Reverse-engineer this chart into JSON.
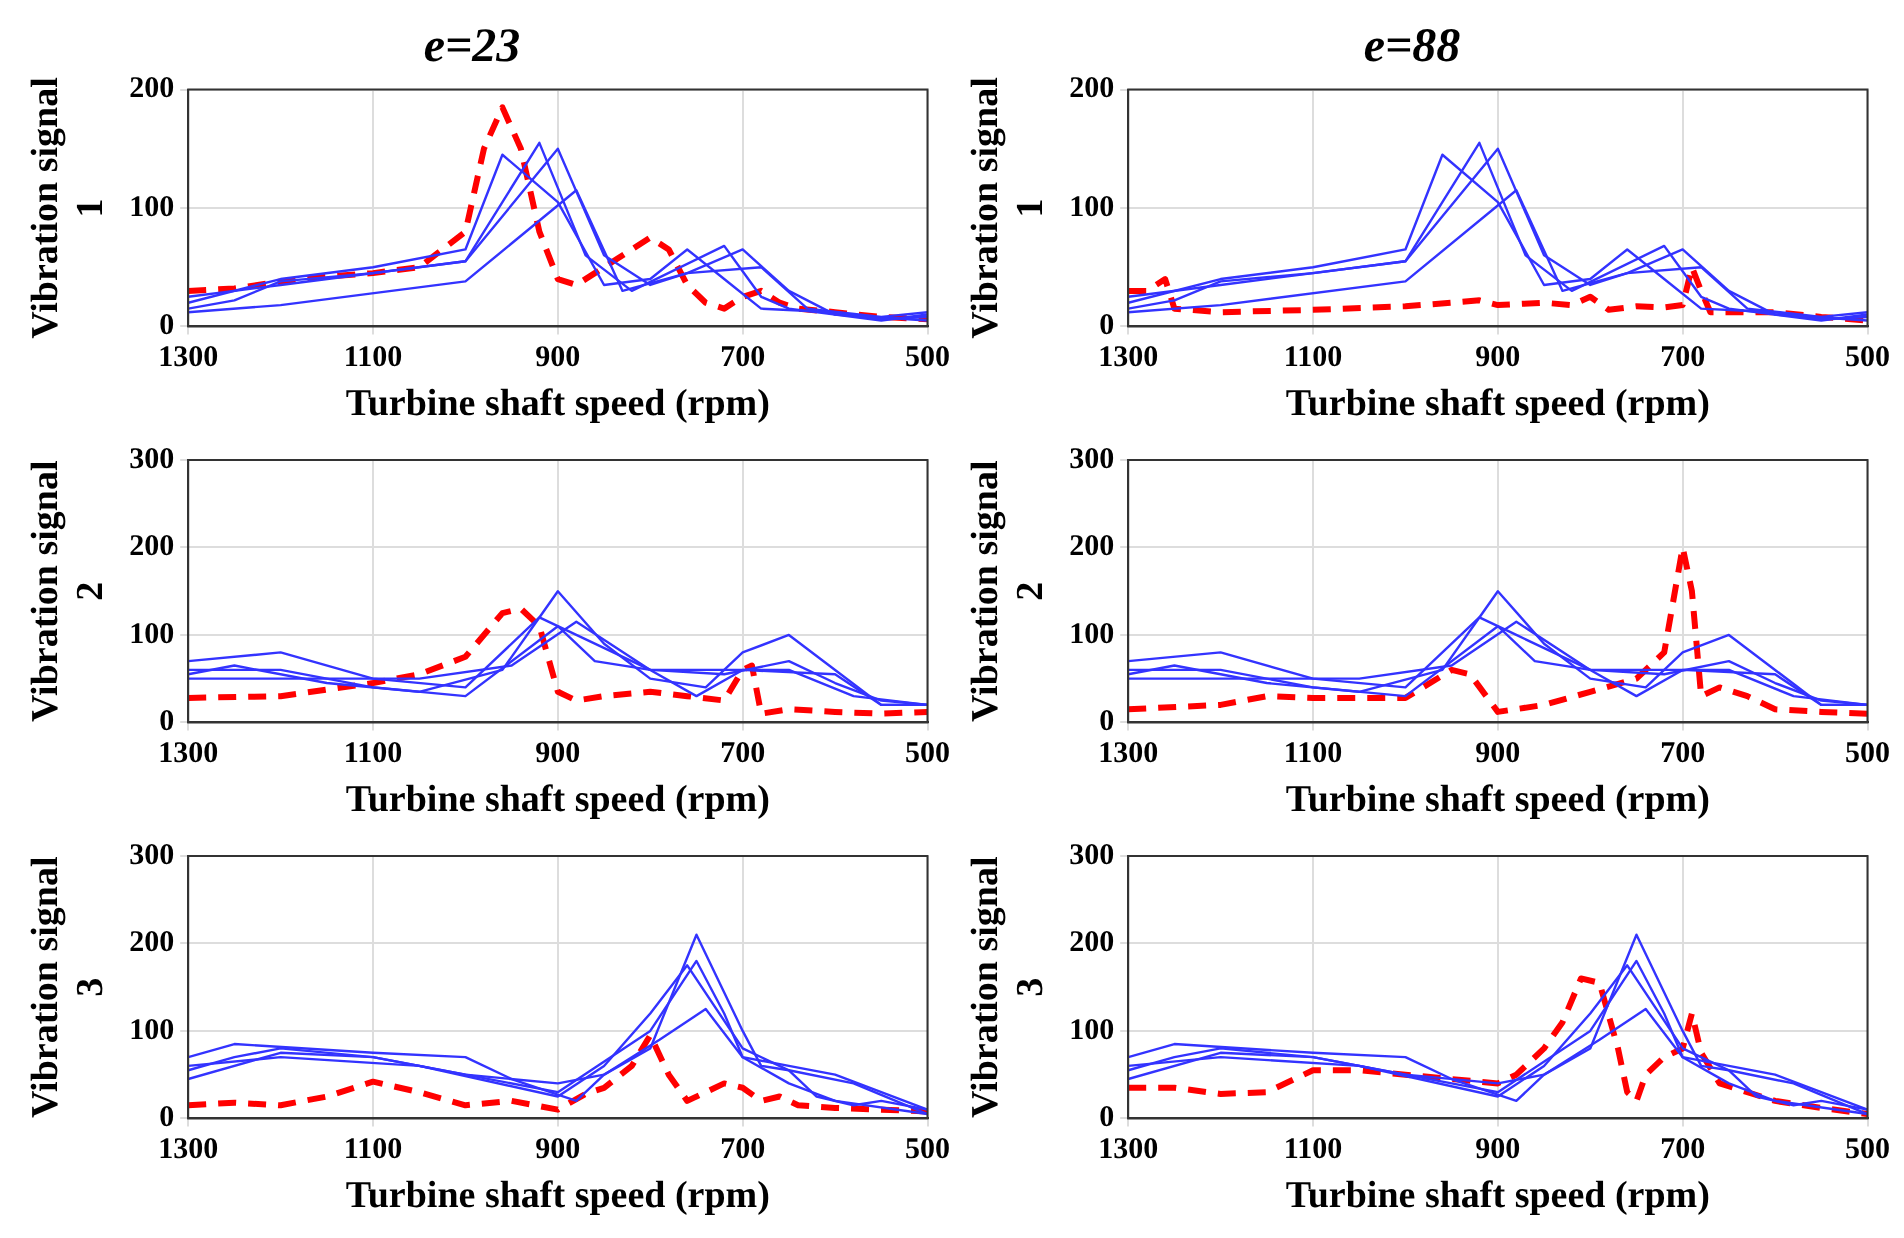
{
  "chart_data": [
    {
      "type": "line",
      "title": "e=23",
      "xlabel": "Turbine shaft speed (rpm)",
      "ylabel": "Vibration signal 1",
      "xlim": [
        1300,
        500
      ],
      "xticks": [
        1300,
        1100,
        900,
        700,
        500
      ],
      "ylim": [
        0,
        200
      ],
      "yticks": [
        0,
        100,
        200
      ],
      "grid": true,
      "legend": false,
      "series": [
        {
          "color": "#3333ff",
          "line_style": "solid",
          "x": [
            1300,
            1200,
            1100,
            1000,
            960,
            900,
            850,
            800,
            760,
            720,
            680,
            600,
            550,
            500
          ],
          "values": [
            20,
            40,
            50,
            65,
            145,
            105,
            35,
            40,
            65,
            40,
            15,
            12,
            6,
            8
          ]
        },
        {
          "color": "#3333ff",
          "line_style": "solid",
          "x": [
            1300,
            1250,
            1200,
            1100,
            1000,
            920,
            870,
            820,
            720,
            680,
            650,
            550,
            500
          ],
          "values": [
            15,
            22,
            38,
            45,
            55,
            155,
            60,
            30,
            68,
            25,
            15,
            5,
            10
          ]
        },
        {
          "color": "#3333ff",
          "line_style": "solid",
          "x": [
            1300,
            1200,
            1000,
            900,
            850,
            800,
            760,
            700,
            650,
            600,
            500
          ],
          "values": [
            25,
            35,
            55,
            150,
            60,
            35,
            45,
            65,
            30,
            10,
            5
          ]
        },
        {
          "color": "#3333ff",
          "line_style": "solid",
          "x": [
            1300,
            1200,
            1000,
            880,
            830,
            760,
            680,
            630,
            550,
            500
          ],
          "values": [
            12,
            18,
            38,
            115,
            30,
            45,
            50,
            15,
            8,
            12
          ]
        },
        {
          "color": "#ff0000",
          "line_style": "dashed",
          "x": [
            1300,
            1250,
            1200,
            1150,
            1100,
            1050,
            1000,
            980,
            960,
            940,
            920,
            900,
            880,
            860,
            840,
            820,
            800,
            780,
            760,
            740,
            720,
            700,
            680,
            660,
            640,
            600,
            550,
            500
          ],
          "values": [
            30,
            32,
            38,
            42,
            45,
            50,
            80,
            150,
            185,
            150,
            80,
            40,
            35,
            45,
            55,
            65,
            75,
            65,
            35,
            20,
            15,
            25,
            30,
            20,
            15,
            12,
            8,
            6
          ]
        }
      ]
    },
    {
      "type": "line",
      "title": "e=88",
      "xlabel": "Turbine shaft speed (rpm)",
      "ylabel": "Vibration signal 1",
      "xlim": [
        1300,
        500
      ],
      "xticks": [
        1300,
        1100,
        900,
        700,
        500
      ],
      "ylim": [
        0,
        200
      ],
      "yticks": [
        0,
        100,
        200
      ],
      "grid": true,
      "legend": false,
      "series": [
        {
          "color": "#3333ff",
          "line_style": "solid",
          "x": [
            1300,
            1200,
            1100,
            1000,
            960,
            900,
            850,
            800,
            760,
            720,
            680,
            600,
            550,
            500
          ],
          "values": [
            20,
            40,
            50,
            65,
            145,
            105,
            35,
            40,
            65,
            40,
            15,
            12,
            6,
            8
          ]
        },
        {
          "color": "#3333ff",
          "line_style": "solid",
          "x": [
            1300,
            1250,
            1200,
            1100,
            1000,
            920,
            870,
            820,
            720,
            680,
            650,
            550,
            500
          ],
          "values": [
            15,
            22,
            38,
            45,
            55,
            155,
            60,
            30,
            68,
            25,
            15,
            5,
            10
          ]
        },
        {
          "color": "#3333ff",
          "line_style": "solid",
          "x": [
            1300,
            1200,
            1000,
            900,
            850,
            800,
            760,
            700,
            650,
            600,
            500
          ],
          "values": [
            25,
            35,
            55,
            150,
            60,
            35,
            45,
            65,
            30,
            10,
            5
          ]
        },
        {
          "color": "#3333ff",
          "line_style": "solid",
          "x": [
            1300,
            1200,
            1000,
            880,
            830,
            760,
            680,
            630,
            550,
            500
          ],
          "values": [
            12,
            18,
            38,
            115,
            30,
            45,
            50,
            15,
            8,
            12
          ]
        },
        {
          "color": "#ff0000",
          "line_style": "dashed",
          "x": [
            1300,
            1280,
            1260,
            1250,
            1200,
            1100,
            1000,
            950,
            920,
            900,
            850,
            820,
            800,
            780,
            750,
            720,
            700,
            690,
            680,
            670,
            600,
            550,
            500
          ],
          "values": [
            30,
            30,
            40,
            15,
            12,
            14,
            17,
            20,
            22,
            18,
            20,
            18,
            25,
            14,
            17,
            16,
            18,
            50,
            30,
            12,
            12,
            8,
            5
          ]
        }
      ]
    },
    {
      "type": "line",
      "xlabel": "Turbine shaft speed (rpm)",
      "ylabel": "Vibration signal 2",
      "xlim": [
        1300,
        500
      ],
      "xticks": [
        1300,
        1100,
        900,
        700,
        500
      ],
      "ylim": [
        0,
        300
      ],
      "yticks": [
        0,
        100,
        200,
        300
      ],
      "grid": true,
      "legend": false,
      "series": [
        {
          "color": "#3333ff",
          "line_style": "solid",
          "x": [
            1300,
            1200,
            1100,
            1000,
            920,
            900,
            850,
            800,
            740,
            700,
            650,
            600,
            550,
            500
          ],
          "values": [
            70,
            80,
            50,
            40,
            120,
            150,
            90,
            50,
            40,
            80,
            100,
            60,
            20,
            20
          ]
        },
        {
          "color": "#3333ff",
          "line_style": "solid",
          "x": [
            1300,
            1250,
            1150,
            1050,
            960,
            920,
            880,
            800,
            750,
            700,
            600,
            550,
            500
          ],
          "values": [
            55,
            65,
            45,
            35,
            60,
            120,
            100,
            60,
            30,
            60,
            55,
            20,
            20
          ]
        },
        {
          "color": "#3333ff",
          "line_style": "solid",
          "x": [
            1300,
            1200,
            1100,
            1000,
            900,
            860,
            800,
            700,
            650,
            580,
            500
          ],
          "values": [
            60,
            60,
            40,
            30,
            110,
            70,
            60,
            60,
            60,
            30,
            20
          ]
        },
        {
          "color": "#3333ff",
          "line_style": "solid",
          "x": [
            1300,
            1200,
            1050,
            950,
            880,
            800,
            720,
            650,
            600,
            550,
            500
          ],
          "values": [
            50,
            50,
            50,
            65,
            115,
            60,
            55,
            70,
            45,
            25,
            20
          ]
        },
        {
          "color": "#ff0000",
          "line_style": "dashed",
          "x": [
            1300,
            1200,
            1100,
            1050,
            1000,
            960,
            940,
            920,
            900,
            880,
            850,
            800,
            760,
            720,
            700,
            690,
            680,
            650,
            600,
            550,
            500
          ],
          "values": [
            28,
            30,
            45,
            55,
            75,
            125,
            130,
            110,
            35,
            25,
            30,
            35,
            30,
            25,
            60,
            65,
            10,
            15,
            12,
            10,
            12
          ]
        }
      ]
    },
    {
      "type": "line",
      "xlabel": "Turbine shaft speed (rpm)",
      "ylabel": "Vibration signal 2",
      "xlim": [
        1300,
        500
      ],
      "xticks": [
        1300,
        1100,
        900,
        700,
        500
      ],
      "ylim": [
        0,
        300
      ],
      "yticks": [
        0,
        100,
        200,
        300
      ],
      "grid": true,
      "legend": false,
      "series": [
        {
          "color": "#3333ff",
          "line_style": "solid",
          "x": [
            1300,
            1200,
            1100,
            1000,
            920,
            900,
            850,
            800,
            740,
            700,
            650,
            600,
            550,
            500
          ],
          "values": [
            70,
            80,
            50,
            40,
            120,
            150,
            90,
            50,
            40,
            80,
            100,
            60,
            20,
            20
          ]
        },
        {
          "color": "#3333ff",
          "line_style": "solid",
          "x": [
            1300,
            1250,
            1150,
            1050,
            960,
            920,
            880,
            800,
            750,
            700,
            600,
            550,
            500
          ],
          "values": [
            55,
            65,
            45,
            35,
            60,
            120,
            100,
            60,
            30,
            60,
            55,
            20,
            20
          ]
        },
        {
          "color": "#3333ff",
          "line_style": "solid",
          "x": [
            1300,
            1200,
            1100,
            1000,
            900,
            860,
            800,
            700,
            650,
            580,
            500
          ],
          "values": [
            60,
            60,
            40,
            30,
            110,
            70,
            60,
            60,
            60,
            30,
            20
          ]
        },
        {
          "color": "#3333ff",
          "line_style": "solid",
          "x": [
            1300,
            1200,
            1050,
            950,
            880,
            800,
            720,
            650,
            600,
            550,
            500
          ],
          "values": [
            50,
            50,
            50,
            65,
            115,
            60,
            55,
            70,
            45,
            25,
            20
          ]
        },
        {
          "color": "#ff0000",
          "line_style": "dashed",
          "x": [
            1300,
            1200,
            1150,
            1100,
            1000,
            950,
            930,
            900,
            850,
            800,
            750,
            720,
            700,
            690,
            680,
            660,
            630,
            600,
            550,
            500
          ],
          "values": [
            15,
            20,
            30,
            28,
            28,
            60,
            55,
            12,
            20,
            35,
            50,
            80,
            200,
            150,
            30,
            40,
            30,
            15,
            12,
            10
          ]
        }
      ]
    },
    {
      "type": "line",
      "xlabel": "Turbine shaft speed (rpm)",
      "ylabel": "Vibration signal 3",
      "xlim": [
        1300,
        500
      ],
      "xticks": [
        1300,
        1100,
        900,
        700,
        500
      ],
      "ylim": [
        0,
        300
      ],
      "yticks": [
        0,
        100,
        200,
        300
      ],
      "grid": true,
      "legend": false,
      "series": [
        {
          "color": "#3333ff",
          "line_style": "solid",
          "x": [
            1300,
            1250,
            1100,
            1000,
            950,
            880,
            850,
            800,
            750,
            700,
            680,
            650,
            620,
            580,
            550,
            500
          ],
          "values": [
            70,
            85,
            75,
            70,
            45,
            20,
            50,
            80,
            210,
            100,
            60,
            55,
            25,
            15,
            20,
            10
          ]
        },
        {
          "color": "#3333ff",
          "line_style": "solid",
          "x": [
            1300,
            1250,
            1200,
            1100,
            1000,
            900,
            800,
            750,
            720,
            700,
            650,
            600,
            550,
            500
          ],
          "values": [
            55,
            70,
            80,
            70,
            50,
            30,
            100,
            180,
            120,
            70,
            60,
            50,
            30,
            10
          ]
        },
        {
          "color": "#3333ff",
          "line_style": "solid",
          "x": [
            1300,
            1200,
            1050,
            900,
            850,
            800,
            760,
            700,
            650,
            580,
            500
          ],
          "values": [
            60,
            70,
            60,
            25,
            60,
            120,
            175,
            80,
            55,
            40,
            5
          ]
        },
        {
          "color": "#3333ff",
          "line_style": "solid",
          "x": [
            1300,
            1200,
            1100,
            1000,
            900,
            850,
            790,
            740,
            700,
            650,
            600,
            500
          ],
          "values": [
            45,
            75,
            70,
            50,
            40,
            50,
            90,
            125,
            70,
            40,
            20,
            5
          ]
        },
        {
          "color": "#ff0000",
          "line_style": "dashed",
          "x": [
            1300,
            1250,
            1200,
            1150,
            1100,
            1050,
            1000,
            950,
            900,
            870,
            850,
            820,
            800,
            780,
            760,
            740,
            720,
            700,
            680,
            660,
            640,
            600,
            550,
            500
          ],
          "values": [
            15,
            18,
            15,
            25,
            42,
            30,
            15,
            20,
            10,
            28,
            35,
            60,
            95,
            50,
            20,
            30,
            40,
            35,
            20,
            25,
            15,
            12,
            10,
            8
          ]
        }
      ]
    },
    {
      "type": "line",
      "xlabel": "Turbine shaft speed (rpm)",
      "ylabel": "Vibration signal 3",
      "xlim": [
        1300,
        500
      ],
      "xticks": [
        1300,
        1100,
        900,
        700,
        500
      ],
      "ylim": [
        0,
        300
      ],
      "yticks": [
        0,
        100,
        200,
        300
      ],
      "grid": true,
      "legend": false,
      "series": [
        {
          "color": "#3333ff",
          "line_style": "solid",
          "x": [
            1300,
            1250,
            1100,
            1000,
            950,
            880,
            850,
            800,
            750,
            700,
            680,
            650,
            620,
            580,
            550,
            500
          ],
          "values": [
            70,
            85,
            75,
            70,
            45,
            20,
            50,
            80,
            210,
            100,
            60,
            55,
            25,
            15,
            20,
            10
          ]
        },
        {
          "color": "#3333ff",
          "line_style": "solid",
          "x": [
            1300,
            1250,
            1200,
            1100,
            1000,
            900,
            800,
            750,
            720,
            700,
            650,
            600,
            550,
            500
          ],
          "values": [
            55,
            70,
            80,
            70,
            50,
            30,
            100,
            180,
            120,
            70,
            60,
            50,
            30,
            10
          ]
        },
        {
          "color": "#3333ff",
          "line_style": "solid",
          "x": [
            1300,
            1200,
            1050,
            900,
            850,
            800,
            760,
            700,
            650,
            580,
            500
          ],
          "values": [
            60,
            70,
            60,
            25,
            60,
            120,
            175,
            80,
            55,
            40,
            5
          ]
        },
        {
          "color": "#3333ff",
          "line_style": "solid",
          "x": [
            1300,
            1200,
            1100,
            1000,
            900,
            850,
            790,
            740,
            700,
            650,
            600,
            500
          ],
          "values": [
            45,
            75,
            70,
            50,
            40,
            50,
            90,
            125,
            70,
            40,
            20,
            5
          ]
        },
        {
          "color": "#ff0000",
          "line_style": "dashed",
          "x": [
            1300,
            1250,
            1200,
            1150,
            1100,
            1050,
            1000,
            950,
            900,
            880,
            850,
            830,
            810,
            790,
            770,
            760,
            750,
            740,
            720,
            700,
            690,
            680,
            660,
            600,
            550,
            500
          ],
          "values": [
            35,
            35,
            28,
            30,
            55,
            55,
            50,
            45,
            40,
            50,
            80,
            110,
            160,
            155,
            80,
            30,
            20,
            50,
            70,
            80,
            120,
            75,
            40,
            20,
            12,
            5
          ]
        }
      ]
    }
  ]
}
